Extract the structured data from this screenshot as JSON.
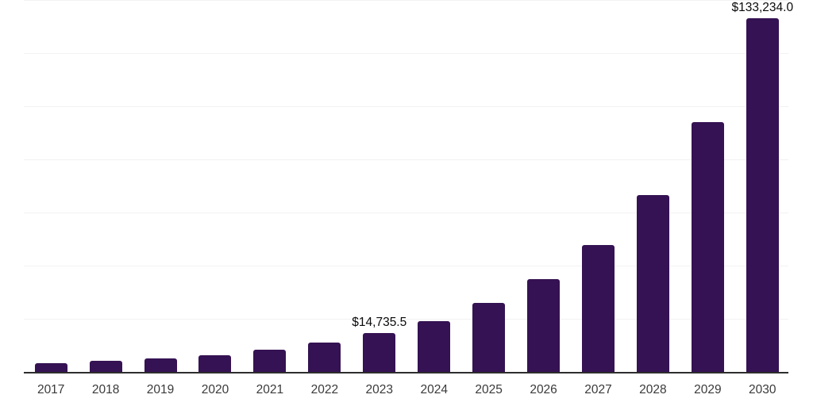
{
  "chart_data": {
    "type": "bar",
    "title": "",
    "xlabel": "",
    "ylabel": "",
    "categories": [
      "2017",
      "2018",
      "2019",
      "2020",
      "2021",
      "2022",
      "2023",
      "2024",
      "2025",
      "2026",
      "2027",
      "2028",
      "2029",
      "2030"
    ],
    "values": [
      3300,
      4100,
      5000,
      6300,
      8250,
      11150,
      14735.5,
      19200,
      25900,
      34800,
      47900,
      66700,
      93900,
      133234.0
    ],
    "data_labels": [
      "",
      "",
      "",
      "",
      "",
      "",
      "$14,735.5",
      "",
      "",
      "",
      "",
      "",
      "",
      "$133,234.0"
    ],
    "ylim": [
      0,
      140000
    ],
    "grid_step": 20000,
    "grid": "horizontal-only",
    "legend": "none",
    "y_tick_labels": "none",
    "colors": {
      "bar": "#351253",
      "gridline": "#f2f2f2",
      "axis_line": "#2e2e2e",
      "tick_label": "#3a3a3a",
      "data_label": "#0a0a0a",
      "background": "#ffffff"
    }
  }
}
